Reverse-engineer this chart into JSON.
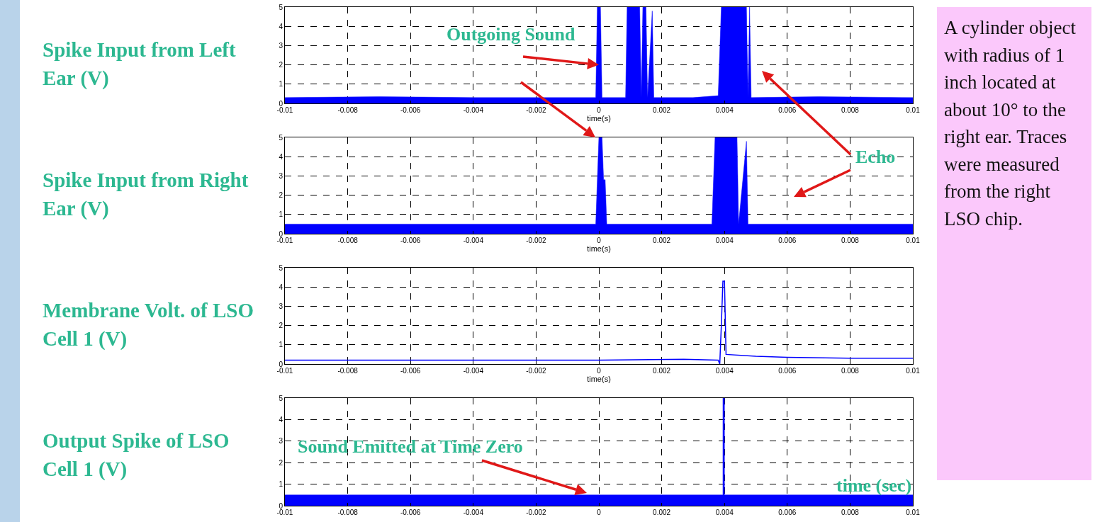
{
  "chart_data": [
    {
      "type": "area",
      "ylabel": "Spike Input from Left Ear (V)",
      "xlabel": "time(s)",
      "xlim": [
        -0.01,
        0.01
      ],
      "ylim": [
        0,
        5
      ],
      "xticks": [
        -0.01,
        -0.008,
        -0.006,
        -0.004,
        -0.002,
        0,
        0.002,
        0.004,
        0.006,
        0.008,
        0.01
      ],
      "yticks": [
        0,
        1,
        2,
        3,
        4,
        5
      ],
      "grid": true,
      "line_style": "solid",
      "marker": "none",
      "series": [
        {
          "color": "#0000ff",
          "x": [
            -0.01,
            -0.007,
            -0.004,
            -0.0001,
            -5e-05,
            5e-05,
            0.0001,
            0.00085,
            0.0009,
            0.0013,
            0.00135,
            0.0014,
            0.0015,
            0.00155,
            0.0017,
            0.00175,
            0.003,
            0.0038,
            0.0039,
            0.0047,
            0.00475,
            0.0048,
            0.00485,
            0.007,
            0.01
          ],
          "values": [
            0.3,
            0.35,
            0.3,
            0.3,
            5,
            5,
            0.3,
            0.3,
            5,
            5,
            0.3,
            5,
            5,
            0.3,
            4.8,
            0.3,
            0.3,
            0.4,
            5,
            5,
            0.3,
            5,
            0.3,
            0.35,
            0.3
          ]
        }
      ],
      "annotations": [
        {
          "text": "Outgoing Sound",
          "x": 0,
          "y": 2
        }
      ]
    },
    {
      "type": "area",
      "ylabel": "Spike Input from Right Ear (V)",
      "xlabel": "time(s)",
      "xlim": [
        -0.01,
        0.01
      ],
      "ylim": [
        0,
        5
      ],
      "xticks": [
        -0.01,
        -0.008,
        -0.006,
        -0.004,
        -0.002,
        0,
        0.002,
        0.004,
        0.006,
        0.008,
        0.01
      ],
      "yticks": [
        0,
        1,
        2,
        3,
        4,
        5
      ],
      "grid": true,
      "line_style": "solid",
      "marker": "none",
      "series": [
        {
          "color": "#0000ff",
          "x": [
            -0.01,
            -0.0001,
            0,
            0.0001,
            0.00015,
            0.0002,
            0.00025,
            0.0036,
            0.0037,
            0.0044,
            0.00445,
            0.0047,
            0.00475,
            0.01
          ],
          "values": [
            0.5,
            0.5,
            5,
            5,
            2.8,
            2.8,
            0.5,
            0.5,
            5,
            5,
            0.5,
            4.8,
            0.5,
            0.5
          ]
        }
      ],
      "annotations": [
        "Echo"
      ]
    },
    {
      "type": "line",
      "ylabel": "Membrane Volt. of LSO Cell 1 (V)",
      "xlabel": "time(s)",
      "xlim": [
        -0.01,
        0.01
      ],
      "ylim": [
        0,
        5
      ],
      "xticks": [
        -0.01,
        -0.008,
        -0.006,
        -0.004,
        -0.002,
        0,
        0.002,
        0.004,
        0.006,
        0.008,
        0.01
      ],
      "yticks": [
        0,
        1,
        2,
        3,
        4,
        5
      ],
      "grid": true,
      "line_style": "solid",
      "marker": "none",
      "series": [
        {
          "color": "#0000ff",
          "x": [
            -0.01,
            -0.005,
            0,
            0.0027,
            0.0038,
            0.00385,
            0.0039,
            0.00395,
            0.004,
            0.00405,
            0.005,
            0.006,
            0.008,
            0.01
          ],
          "values": [
            0.2,
            0.2,
            0.2,
            0.25,
            0.2,
            0,
            2,
            4.3,
            4.3,
            0.5,
            0.4,
            0.35,
            0.3,
            0.3
          ]
        }
      ]
    },
    {
      "type": "area",
      "ylabel": "Output Spike of LSO Cell 1 (V)",
      "xlim": [
        -0.01,
        0.01
      ],
      "ylim": [
        0,
        5
      ],
      "xticks": [
        -0.01,
        -0.008,
        -0.006,
        -0.004,
        -0.002,
        0,
        0.002,
        0.004,
        0.006,
        0.008,
        0.01
      ],
      "yticks": [
        0,
        1,
        2,
        3,
        4,
        5
      ],
      "grid": true,
      "line_style": "solid",
      "marker": "none",
      "series": [
        {
          "color": "#0000ff",
          "x": [
            -0.01,
            0.00395,
            0.00395,
            0.004,
            0.004,
            0.01
          ],
          "values": [
            0.5,
            0.5,
            5,
            5,
            0.5,
            0.5
          ]
        }
      ],
      "annotations": [
        "Sound Emitted at Time Zero",
        "time (sec)"
      ]
    },
    {
      "type": "other",
      "annotations": [
        "A cylinder object with radius of 1 inch located at about 10° to the right ear. Traces were measured from the right LSO chip."
      ]
    }
  ]
}
